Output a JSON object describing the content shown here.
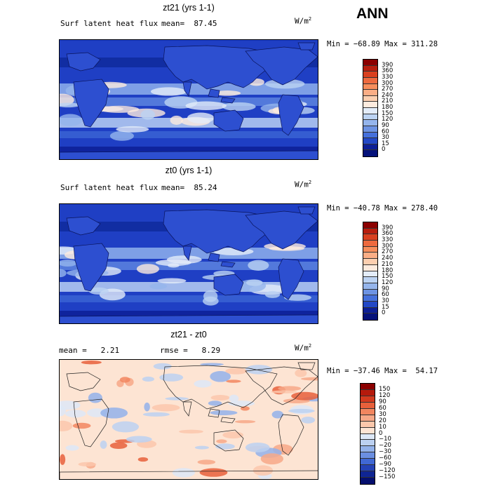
{
  "season": "ANN",
  "panels": [
    {
      "title": "zt21 (yrs 1-1)",
      "subtitle_left": "Surf latent heat flux",
      "subtitle_mid": "mean=  87.45",
      "units": "W/m",
      "units_sup": "2",
      "stats": "Min = −68.89 Max = 311.28",
      "colorbar": {
        "labels": [
          "390",
          "360",
          "330",
          "300",
          "270",
          "240",
          "210",
          "180",
          "150",
          "120",
          "90",
          "60",
          "30",
          "15",
          "0"
        ],
        "colors": [
          "#8b0000",
          "#b81e0e",
          "#d9401f",
          "#ed6a3f",
          "#f78e5c",
          "#fbae86",
          "#fccfb0",
          "#fdebde",
          "#e3ecf9",
          "#bcd3f3",
          "#95b5ec",
          "#6d93e3",
          "#4570db",
          "#2348c6",
          "#0d1f96",
          "#05127a"
        ]
      },
      "map_style": "flux"
    },
    {
      "title": "zt0 (yrs 1-1)",
      "subtitle_left": "Surf latent heat flux",
      "subtitle_mid": "mean=  85.24",
      "units": "W/m",
      "units_sup": "2",
      "stats": "Min = −40.78 Max = 278.40",
      "colorbar": {
        "labels": [
          "390",
          "360",
          "330",
          "300",
          "270",
          "240",
          "210",
          "180",
          "150",
          "120",
          "90",
          "60",
          "30",
          "15",
          "0"
        ],
        "colors": [
          "#8b0000",
          "#b81e0e",
          "#d9401f",
          "#ed6a3f",
          "#f78e5c",
          "#fbae86",
          "#fccfb0",
          "#fdebde",
          "#e3ecf9",
          "#bcd3f3",
          "#95b5ec",
          "#6d93e3",
          "#4570db",
          "#2348c6",
          "#0d1f96",
          "#05127a"
        ]
      },
      "map_style": "flux"
    },
    {
      "title": "zt21 - zt0",
      "subtitle_left": "mean =   2.21",
      "subtitle_mid": "rmse =   8.29",
      "units": "W/m",
      "units_sup": "2",
      "stats": "Min = −37.46 Max =  54.17",
      "colorbar": {
        "labels": [
          "150",
          "120",
          "90",
          "60",
          "30",
          "20",
          "10",
          "0",
          "−10",
          "−20",
          "−30",
          "−60",
          "−90",
          "−120",
          "−150"
        ],
        "colors": [
          "#8b0000",
          "#b51a0c",
          "#d33a1e",
          "#e7603b",
          "#f2865f",
          "#f7a887",
          "#fbc7ab",
          "#fde4d3",
          "#dde8f7",
          "#bcd1f1",
          "#93b2ea",
          "#6b8fe1",
          "#4068d4",
          "#2442b6",
          "#0f2593",
          "#050f6e"
        ]
      },
      "map_style": "diff"
    }
  ]
}
